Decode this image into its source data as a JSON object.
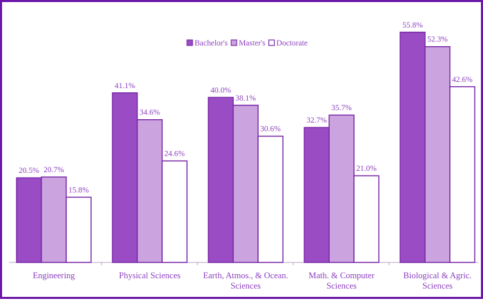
{
  "chart_data": {
    "type": "bar",
    "title": "",
    "xlabel": "",
    "ylabel": "",
    "ylim": [
      0,
      56
    ],
    "grid": false,
    "legend_placement": "top-center",
    "categories": [
      [
        "Engineering"
      ],
      [
        "Physical Sciences"
      ],
      [
        "Earth, Atmos., & Ocean.",
        "Sciences"
      ],
      [
        "Math. & Computer",
        "Sciences"
      ],
      [
        "Biological & Agric.",
        "Sciences"
      ]
    ],
    "series": [
      {
        "name": "Bachelor's",
        "values": [
          20.5,
          41.1,
          40.0,
          32.7,
          55.8
        ],
        "color": "#9a4cc4"
      },
      {
        "name": "Master's",
        "values": [
          20.7,
          34.6,
          38.1,
          35.7,
          52.3
        ],
        "color": "#cba3df"
      },
      {
        "name": "Doctorate",
        "values": [
          15.8,
          24.6,
          30.6,
          21.0,
          42.6
        ],
        "color": "#ffffff"
      }
    ],
    "value_labels": [
      [
        "20.5%",
        "41.1%",
        "40.0%",
        "32.7%",
        "55.8%"
      ],
      [
        "20.7%",
        "34.6%",
        "38.1%",
        "35.7%",
        "52.3%"
      ],
      [
        "15.8%",
        "24.6%",
        "30.6%",
        "21.0%",
        "42.6%"
      ]
    ],
    "bar_border_color": "#7a2aa8",
    "text_color": "#8c3fbf",
    "frame_color": "#6b16a8"
  }
}
